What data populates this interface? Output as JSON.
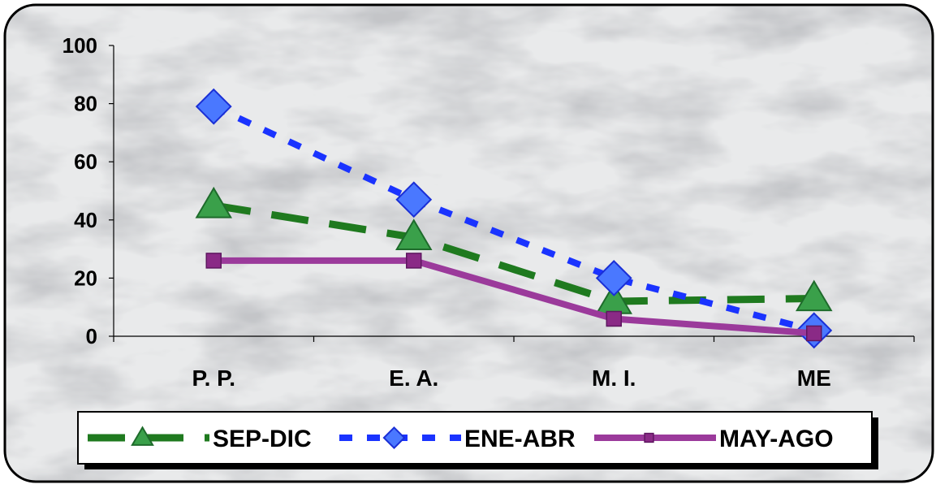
{
  "chart_data": {
    "type": "line",
    "title": "",
    "xlabel": "",
    "ylabel": "",
    "categories": [
      "P. P.",
      "E. A.",
      "M. I.",
      "ME"
    ],
    "ylim": [
      0,
      100
    ],
    "yticks": [
      "0",
      "20",
      "40",
      "60",
      "80",
      "100"
    ],
    "grid": false,
    "legend_position": "bottom",
    "series": [
      {
        "name": "SEP-DIC",
        "values": [
          45,
          34,
          12,
          13
        ],
        "color": "#1f7a1f",
        "marker": "triangle",
        "line_style": "long-dash"
      },
      {
        "name": "ENE-ABR",
        "values": [
          79,
          47,
          20,
          2
        ],
        "color": "#1a33ff",
        "marker": "diamond",
        "line_style": "dash"
      },
      {
        "name": "MAY-AGO",
        "values": [
          26,
          26,
          6,
          1
        ],
        "color": "#9b3a9b",
        "marker": "square",
        "line_style": "solid"
      }
    ]
  }
}
